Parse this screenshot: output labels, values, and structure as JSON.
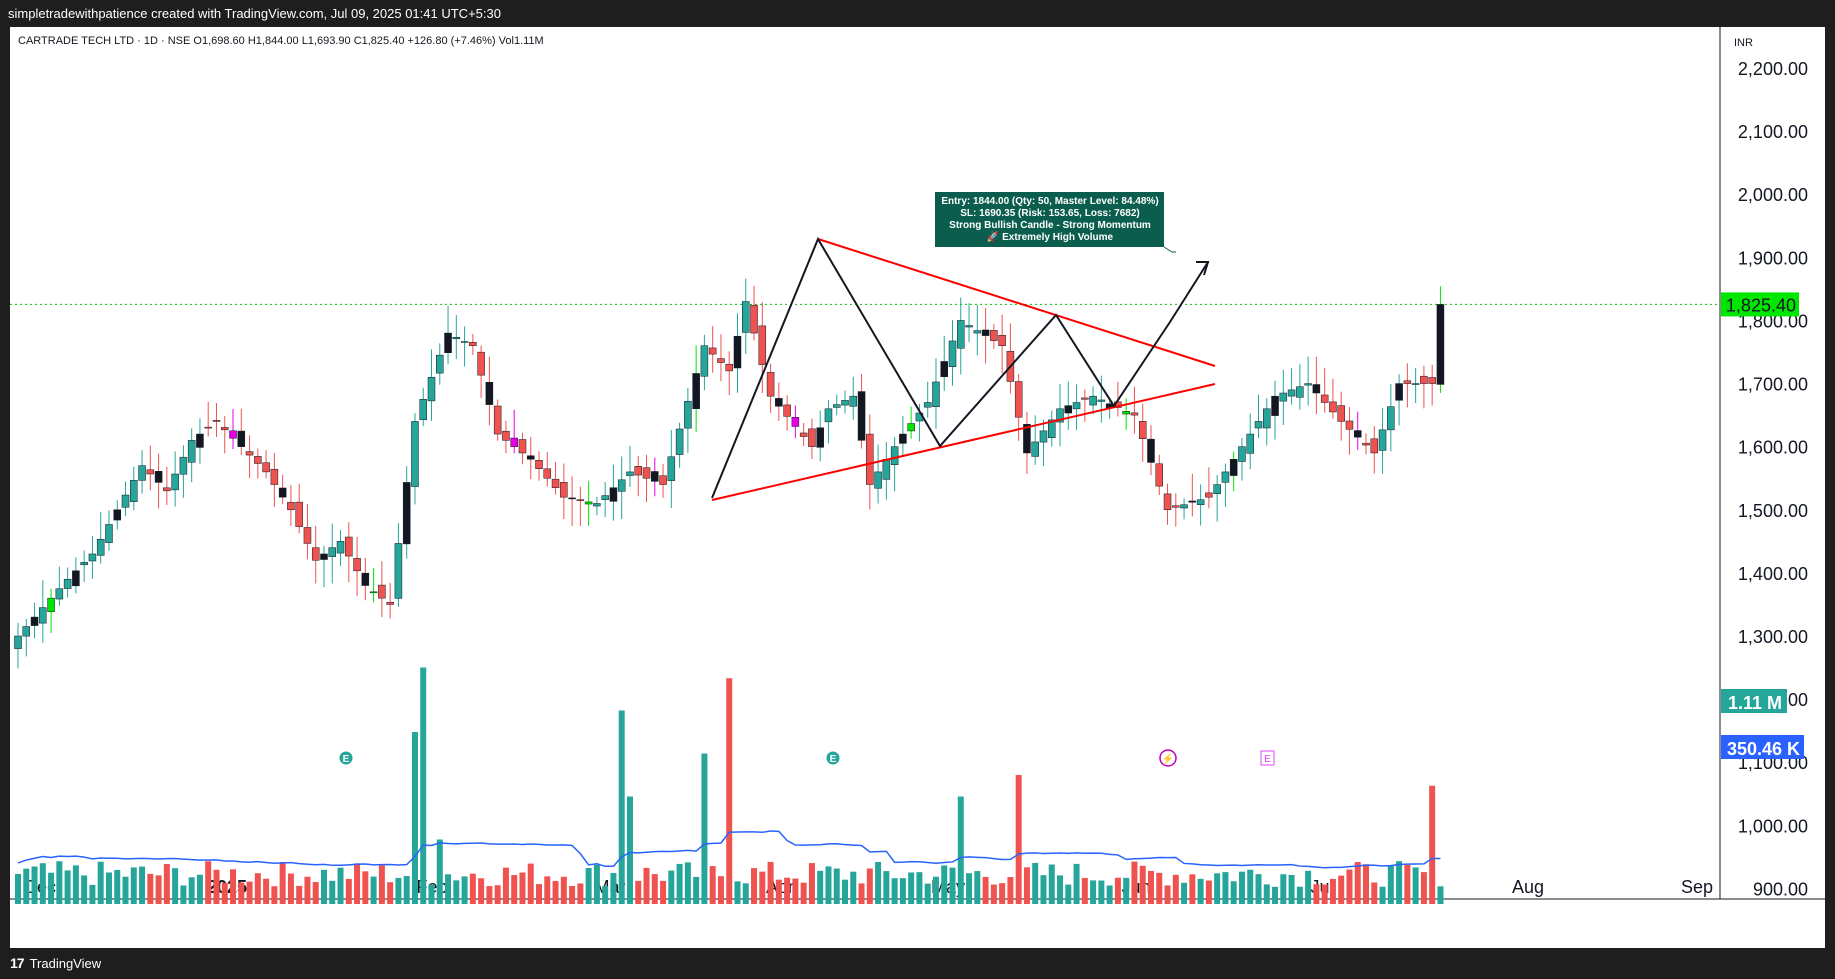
{
  "header": {
    "caption": "simpletradewithpatience created with TradingView.com, Jul 09, 2025 01:41 UTC+5:30"
  },
  "legend": {
    "symbol": "CARTRADE TECH LTD · 1D · NSE",
    "open": "O1,698.60",
    "high": "H1,844.00",
    "low": "L1,693.90",
    "close": "C1,825.40",
    "change": "+126.80 (+7.46%)",
    "volume": "Vol1.11M"
  },
  "currency": "INR",
  "footer": {
    "brand": "TradingView"
  },
  "colors": {
    "up": "#26a69a",
    "down": "#ef5350",
    "bull_signal": "#00e600",
    "bear_signal": "#e600e6",
    "black": "#131722",
    "trend": "#ff0000",
    "ma": "#2962ff",
    "last_price": "#00e600",
    "annotation_bg": "#0b5e4d"
  },
  "annotation": {
    "lines": [
      "Entry: 1844.00 (Qty: 50, Master Level: 84.48%)",
      "SL: 1690.35 (Risk: 153.65, Loss: 7682)",
      "Strong Bullish Candle - Strong Momentum",
      "🚀 Extremely High Volume"
    ]
  },
  "markers": {
    "earnings": "E",
    "flash": "⚡"
  },
  "chart_data": {
    "type": "candlestick",
    "title": "CARTRADE TECH LTD · 1D · NSE",
    "ylim": [
      900,
      2250
    ],
    "yticks": [
      "2,200.00",
      "2,100.00",
      "2,000.00",
      "1,900.00",
      "1,800.00",
      "1,700.00",
      "1,600.00",
      "1,500.00",
      "1,400.00",
      "1,300.00",
      "1,200.00",
      "1,100.00",
      "1,000.00",
      "900.00"
    ],
    "x_labels": [
      "Dec",
      "2025",
      "Feb",
      "Mar",
      "Apr",
      "May",
      "Jun",
      "Jul",
      "Aug",
      "Sep"
    ],
    "last_price": "1,825.40",
    "last_volume": "1.11 M",
    "volume_ma": "350.46 K",
    "price_anchors": [
      [
        0,
        1300
      ],
      [
        3,
        1345
      ],
      [
        6,
        1390
      ],
      [
        9,
        1430
      ],
      [
        12,
        1500
      ],
      [
        15,
        1570
      ],
      [
        18,
        1530
      ],
      [
        21,
        1610
      ],
      [
        24,
        1640
      ],
      [
        27,
        1600
      ],
      [
        30,
        1560
      ],
      [
        33,
        1500
      ],
      [
        36,
        1420
      ],
      [
        39,
        1450
      ],
      [
        42,
        1380
      ],
      [
        45,
        1350
      ],
      [
        48,
        1640
      ],
      [
        52,
        1780
      ],
      [
        55,
        1760
      ],
      [
        58,
        1620
      ],
      [
        62,
        1580
      ],
      [
        66,
        1520
      ],
      [
        70,
        1510
      ],
      [
        74,
        1560
      ],
      [
        78,
        1540
      ],
      [
        83,
        1760
      ],
      [
        86,
        1720
      ],
      [
        88,
        1830
      ],
      [
        91,
        1680
      ],
      [
        96,
        1600
      ],
      [
        98,
        1660
      ],
      [
        101,
        1680
      ],
      [
        103,
        1540
      ],
      [
        107,
        1620
      ],
      [
        110,
        1670
      ],
      [
        114,
        1800
      ],
      [
        119,
        1760
      ],
      [
        122,
        1590
      ],
      [
        126,
        1660
      ],
      [
        130,
        1680
      ],
      [
        135,
        1650
      ],
      [
        139,
        1500
      ],
      [
        144,
        1520
      ],
      [
        148,
        1600
      ],
      [
        152,
        1680
      ],
      [
        156,
        1700
      ],
      [
        160,
        1640
      ],
      [
        164,
        1590
      ],
      [
        167,
        1700
      ],
      [
        171,
        1700
      ],
      [
        172,
        1825.4
      ]
    ],
    "volume_spikes": {
      "48": 0.8,
      "49": 1.1,
      "51": 0.3,
      "73": 0.9,
      "74": 0.5,
      "83": 0.7,
      "86": 1.05,
      "114": 0.5,
      "121": 0.6,
      "171": 0.55
    }
  }
}
